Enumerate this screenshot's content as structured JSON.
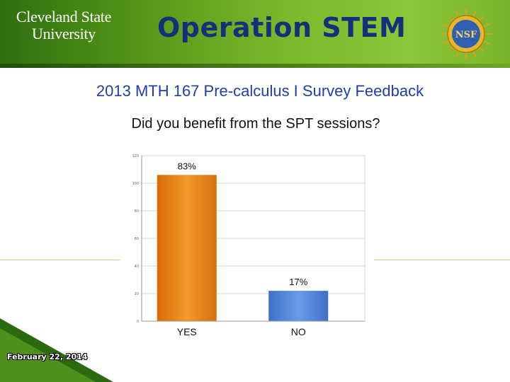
{
  "header": {
    "university_line1": "Cleveland State",
    "university_line2": "University",
    "program_title": "Operation STEM",
    "seal_text": "NSF"
  },
  "slide_title": "2013 MTH 167 Pre-calculus I Survey Feedback",
  "question": "Did you benefit from the SPT sessions?",
  "footer": {
    "date": "February 22, 2014"
  },
  "colors": {
    "header_green": "#7ab82a",
    "title_blue": "#1f3fa8",
    "yes_bar": "#e07a10",
    "no_bar": "#4a7fd6"
  },
  "chart_data": {
    "type": "bar",
    "title": "",
    "xlabel": "",
    "ylabel": "",
    "categories": [
      "YES",
      "NO"
    ],
    "values": [
      106,
      22
    ],
    "data_labels": [
      "83%",
      "17%"
    ],
    "ylim": [
      0,
      120
    ],
    "yticks": [
      0,
      20,
      40,
      60,
      80,
      100,
      120
    ],
    "grid": true,
    "legend": "none"
  }
}
